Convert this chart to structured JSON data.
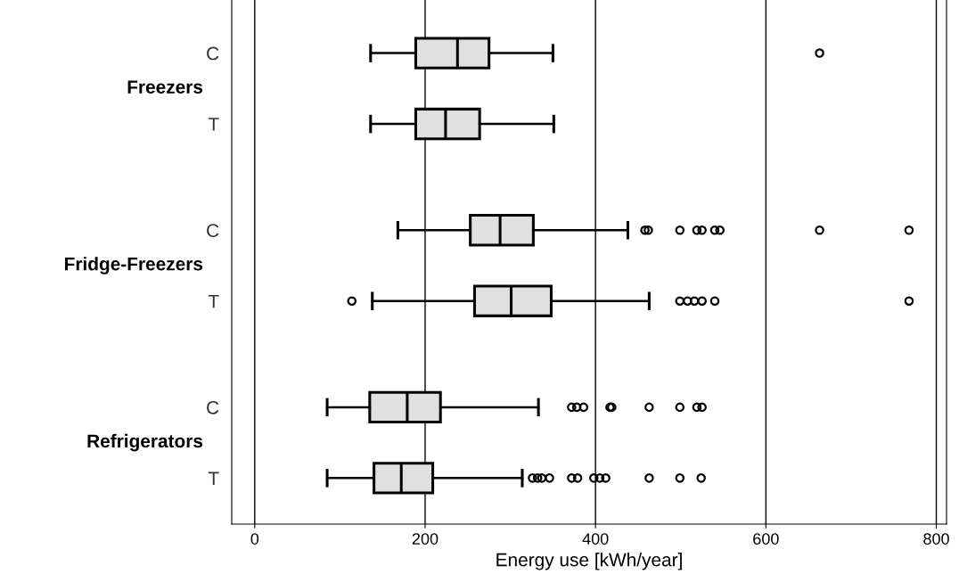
{
  "chart_data": {
    "type": "box",
    "orientation": "horizontal",
    "xlabel": "Energy use [kWh/year]",
    "categories": [
      "C",
      "T",
      "C",
      "T",
      "C",
      "T"
    ],
    "annotations": [
      "Freezers",
      "Fridge-Freezers",
      "Refrigerators"
    ],
    "color": "#e0e0e0",
    "boxes": [
      {
        "low": 136,
        "q1": 189,
        "median": 238,
        "q3": 275,
        "high": 350,
        "outliers": [
          663
        ]
      },
      {
        "low": 136,
        "q1": 189,
        "median": 224,
        "q3": 264,
        "high": 351
      },
      {
        "low": 168,
        "q1": 253,
        "median": 288,
        "q3": 327,
        "high": 438,
        "outliers": [
          458,
          462,
          499,
          519,
          525,
          540,
          546,
          663,
          768
        ]
      },
      {
        "low": 138,
        "q1": 258,
        "median": 301,
        "q3": 348,
        "high": 463,
        "outliers": [
          114,
          499,
          508,
          516,
          525,
          540,
          768
        ]
      },
      {
        "low": 85,
        "q1": 135,
        "median": 179,
        "q3": 218,
        "high": 333,
        "outliers": [
          372,
          378,
          386,
          417,
          419,
          463,
          499,
          519,
          525
        ]
      },
      {
        "low": 85,
        "q1": 140,
        "median": 172,
        "q3": 209,
        "high": 314,
        "outliers": [
          326,
          332,
          337,
          346,
          372,
          379,
          398,
          405,
          412,
          463,
          499,
          524
        ]
      }
    ],
    "xlim": [
      -27,
      812
    ],
    "xticks": [
      0,
      200,
      400,
      600,
      800
    ],
    "grid": "x",
    "marker": "circle"
  }
}
